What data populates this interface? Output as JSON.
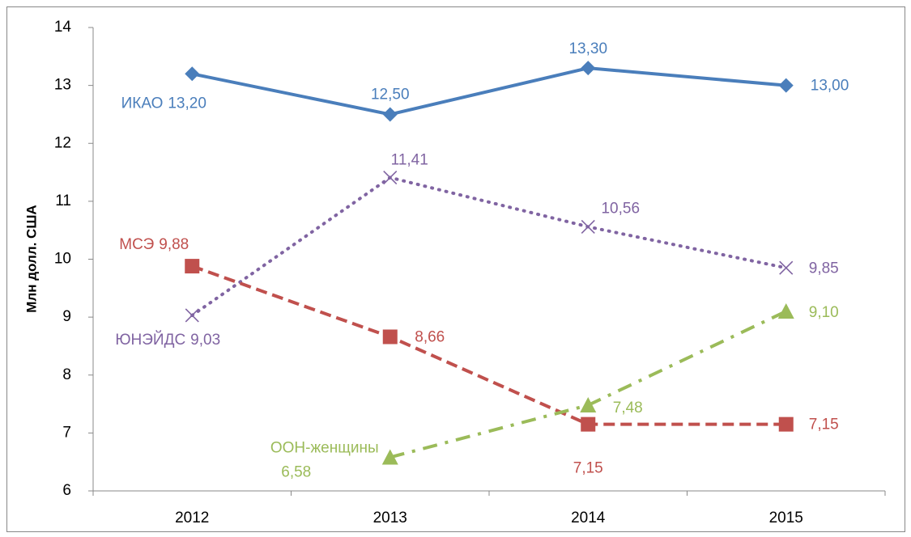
{
  "chart_data": {
    "type": "line",
    "y_axis_label": "Млн долл. США",
    "categories": [
      "2012",
      "2013",
      "2014",
      "2015"
    ],
    "ylim": [
      6,
      14
    ],
    "yticks": [
      6,
      7,
      8,
      9,
      10,
      11,
      12,
      13,
      14
    ],
    "grid": false,
    "series": [
      {
        "name": "ИКАО",
        "color": "#4a7ebb",
        "marker": "diamond",
        "dash": "solid",
        "values": [
          13.2,
          12.5,
          13.3,
          13.0
        ],
        "value_labels": [
          "13,20",
          "12,50",
          "13,30",
          "13,00"
        ]
      },
      {
        "name": "ЮНЭЙДС",
        "color": "#8064a2",
        "marker": "x",
        "dash": "dotted",
        "values": [
          9.03,
          11.41,
          10.56,
          9.85
        ],
        "value_labels": [
          "9,03",
          "11,41",
          "10,56",
          "9,85"
        ]
      },
      {
        "name": "МСЭ",
        "color": "#c0504d",
        "marker": "square",
        "dash": "dashed",
        "values": [
          9.88,
          8.66,
          7.15,
          7.15
        ],
        "value_labels": [
          "9,88",
          "8,66",
          "7,15",
          "7,15"
        ]
      },
      {
        "name": "ООН-женщины",
        "color": "#9bbb59",
        "marker": "triangle",
        "dash": "dashdot",
        "values": [
          null,
          6.58,
          7.48,
          9.1
        ],
        "value_labels": [
          null,
          "6,58",
          "7,48",
          "9,10"
        ]
      }
    ]
  }
}
